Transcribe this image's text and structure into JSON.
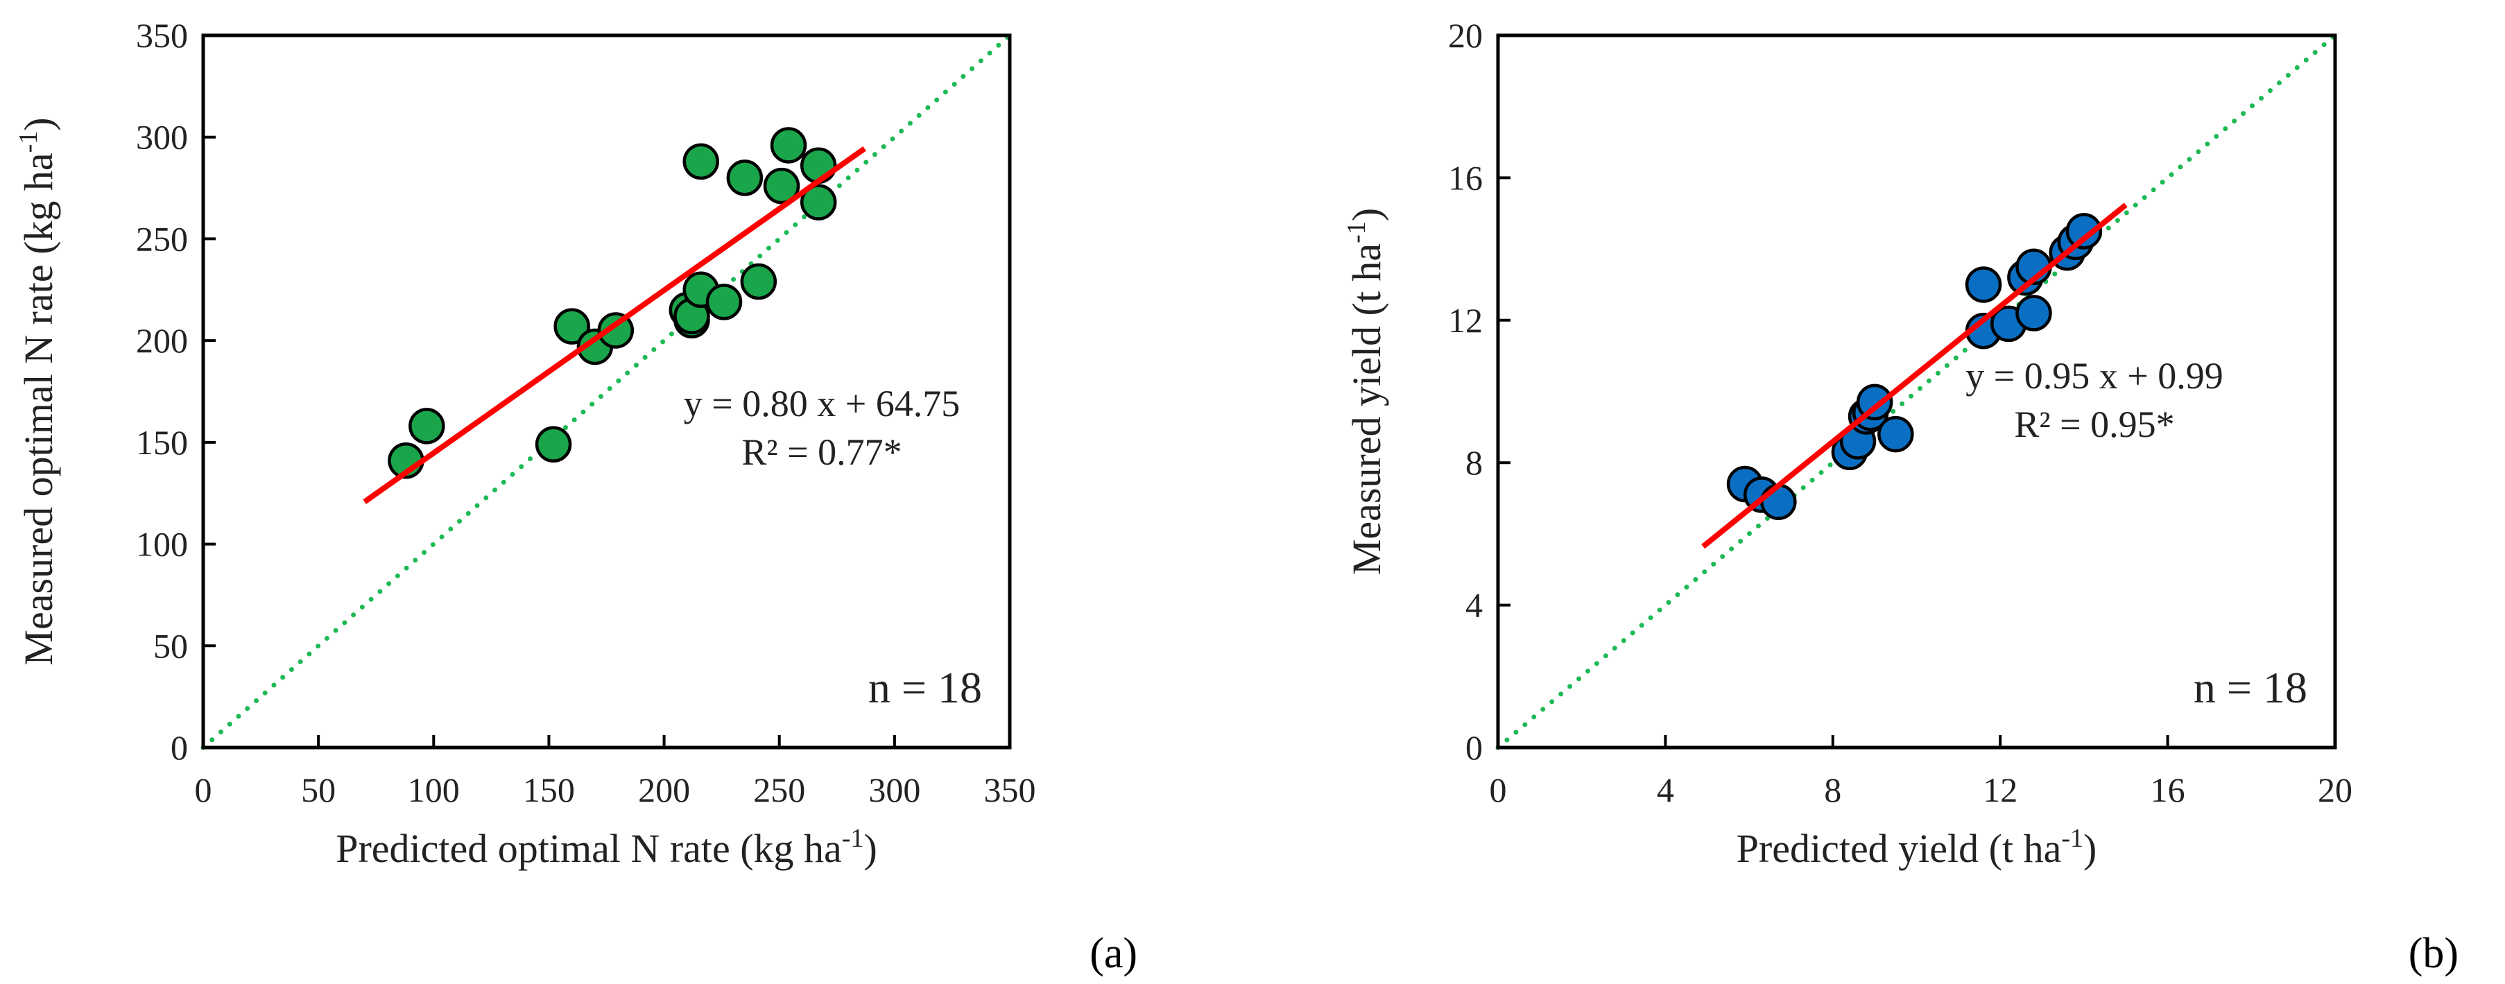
{
  "chart_data": [
    {
      "type": "scatter",
      "panel_label": "(a)",
      "xlabel": "Predicted optimal N rate (kg ha-1)",
      "ylabel": "Measured optimal N rate (kg ha-1)",
      "xlim": [
        0,
        350
      ],
      "ylim": [
        0,
        350
      ],
      "xticks": [
        0,
        50,
        100,
        150,
        200,
        250,
        300,
        350
      ],
      "yticks": [
        0,
        50,
        100,
        150,
        200,
        250,
        300,
        350
      ],
      "grid": false,
      "marker_color": "#1aa54a",
      "fit_color": "#ff0000",
      "one_to_one_color": "#1db954",
      "equation": "y = 0.80 x + 64.75",
      "r2": "R² = 0.77*",
      "n_label": "n = 18",
      "fit": {
        "slope": 0.8,
        "intercept": 64.75,
        "x_range": [
          70,
          287
        ]
      },
      "points": [
        [
          88,
          141
        ],
        [
          97,
          158
        ],
        [
          152,
          149
        ],
        [
          160,
          207
        ],
        [
          170,
          197
        ],
        [
          179,
          205
        ],
        [
          210,
          215
        ],
        [
          212,
          210
        ],
        [
          212,
          212
        ],
        [
          216,
          225
        ],
        [
          226,
          219
        ],
        [
          241,
          229
        ],
        [
          216,
          288
        ],
        [
          235,
          280
        ],
        [
          251,
          276
        ],
        [
          254,
          296
        ],
        [
          267,
          286
        ],
        [
          267,
          268
        ]
      ]
    },
    {
      "type": "scatter",
      "panel_label": "(b)",
      "xlabel": "Predicted yield (t ha-1)",
      "ylabel": "Measured yield  (t ha-1)",
      "xlim": [
        0,
        20
      ],
      "ylim": [
        0,
        20
      ],
      "xticks": [
        0,
        4,
        8,
        12,
        16,
        20
      ],
      "yticks": [
        0,
        4,
        8,
        12,
        16,
        20
      ],
      "grid": false,
      "marker_color": "#0a6fc2",
      "fit_color": "#ff0000",
      "one_to_one_color": "#1db954",
      "equation": "y = 0.95 x + 0.99",
      "r2": "R² = 0.95*",
      "n_label": "n = 18",
      "fit": {
        "slope": 0.95,
        "intercept": 0.99,
        "x_range": [
          4.9,
          15.0
        ]
      },
      "points": [
        [
          5.9,
          7.4
        ],
        [
          6.3,
          7.1
        ],
        [
          6.7,
          6.9
        ],
        [
          8.4,
          8.3
        ],
        [
          8.6,
          8.6
        ],
        [
          8.8,
          9.3
        ],
        [
          8.9,
          9.4
        ],
        [
          9.0,
          9.7
        ],
        [
          9.5,
          8.8
        ],
        [
          11.6,
          11.7
        ],
        [
          11.6,
          13.0
        ],
        [
          12.2,
          11.9
        ],
        [
          12.8,
          12.2
        ],
        [
          12.6,
          13.2
        ],
        [
          12.8,
          13.5
        ],
        [
          13.6,
          13.9
        ],
        [
          13.8,
          14.2
        ],
        [
          14.0,
          14.5
        ]
      ]
    }
  ]
}
